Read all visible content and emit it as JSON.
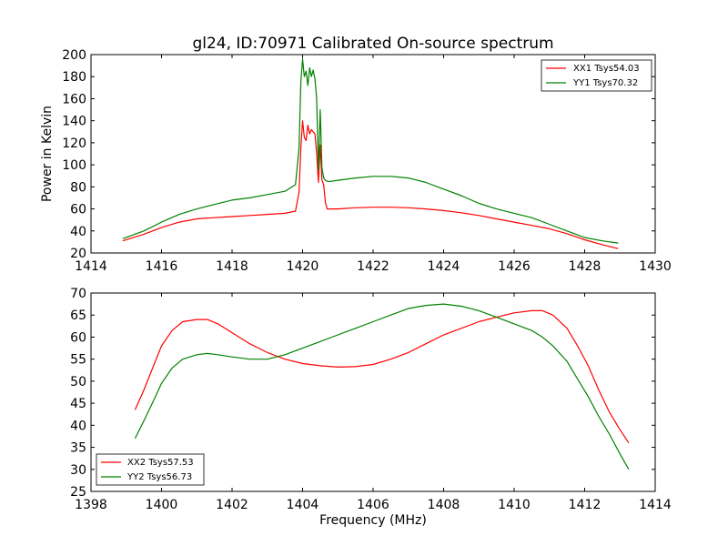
{
  "chart_data": [
    {
      "type": "line",
      "title": "gl24, ID:70971 Calibrated On-source spectrum",
      "xlabel": "",
      "ylabel": "Power in Kelvin",
      "xlim": [
        1414,
        1430
      ],
      "ylim": [
        20,
        200
      ],
      "xticks": [
        1414,
        1416,
        1418,
        1420,
        1422,
        1424,
        1426,
        1428,
        1430
      ],
      "yticks": [
        20,
        40,
        60,
        80,
        100,
        120,
        140,
        160,
        180,
        200
      ],
      "legend_position": "top-right",
      "grid": false,
      "series": [
        {
          "name": "XX1 Tsys54.03",
          "color": "#ff0000",
          "x": [
            1414.9,
            1415.5,
            1416.0,
            1416.5,
            1417.0,
            1417.5,
            1418.0,
            1418.5,
            1419.0,
            1419.5,
            1419.8,
            1419.9,
            1419.95,
            1420.0,
            1420.05,
            1420.1,
            1420.15,
            1420.2,
            1420.25,
            1420.3,
            1420.35,
            1420.4,
            1420.45,
            1420.5,
            1420.55,
            1420.6,
            1420.65,
            1420.7,
            1420.8,
            1421.0,
            1421.5,
            1422.0,
            1422.5,
            1423.0,
            1423.5,
            1424.0,
            1424.5,
            1425.0,
            1425.5,
            1426.0,
            1426.5,
            1427.0,
            1427.5,
            1428.0,
            1428.5,
            1428.95
          ],
          "y": [
            31,
            37,
            43,
            48,
            51,
            52,
            53,
            54,
            55,
            56,
            58,
            75,
            115,
            140,
            125,
            122,
            136,
            128,
            132,
            130,
            128,
            110,
            84,
            118,
            86,
            82,
            65,
            60,
            60,
            60,
            61,
            61.5,
            61.5,
            61,
            60,
            58.5,
            56.5,
            54,
            51,
            48,
            45,
            42,
            37.5,
            32,
            27.5,
            24
          ]
        },
        {
          "name": "YY1 Tsys70.32",
          "color": "#008000",
          "x": [
            1414.9,
            1415.5,
            1416.0,
            1416.5,
            1417.0,
            1417.5,
            1418.0,
            1418.5,
            1419.0,
            1419.5,
            1419.8,
            1419.9,
            1419.95,
            1420.0,
            1420.05,
            1420.1,
            1420.15,
            1420.2,
            1420.25,
            1420.3,
            1420.35,
            1420.4,
            1420.45,
            1420.5,
            1420.55,
            1420.6,
            1420.65,
            1420.7,
            1420.8,
            1421.0,
            1421.5,
            1422.0,
            1422.5,
            1423.0,
            1423.5,
            1424.0,
            1424.5,
            1425.0,
            1425.5,
            1426.0,
            1426.5,
            1427.0,
            1427.5,
            1428.0,
            1428.5,
            1428.95
          ],
          "y": [
            33,
            40,
            48,
            55,
            60,
            64,
            68,
            70,
            73,
            76,
            82,
            115,
            175,
            196,
            180,
            185,
            172,
            188,
            180,
            186,
            178,
            160,
            95,
            150,
            97,
            88,
            86,
            85,
            85,
            86,
            88,
            89.5,
            89.5,
            88,
            84,
            78,
            72,
            65,
            60,
            56,
            52,
            46,
            40,
            34,
            31,
            29
          ]
        }
      ]
    },
    {
      "type": "line",
      "title": "",
      "xlabel": "Frequency (MHz)",
      "ylabel": "",
      "xlim": [
        1398,
        1414
      ],
      "ylim": [
        25,
        70
      ],
      "xticks": [
        1398,
        1400,
        1402,
        1404,
        1406,
        1408,
        1410,
        1412,
        1414
      ],
      "yticks": [
        25,
        30,
        35,
        40,
        45,
        50,
        55,
        60,
        65,
        70
      ],
      "legend_position": "bottom-left",
      "grid": false,
      "series": [
        {
          "name": "XX2 Tsys57.53",
          "color": "#ff0000",
          "x": [
            1399.25,
            1399.5,
            1399.8,
            1400.0,
            1400.3,
            1400.6,
            1401.0,
            1401.3,
            1401.6,
            1402.0,
            1402.5,
            1403.0,
            1403.5,
            1404.0,
            1404.5,
            1405.0,
            1405.5,
            1406.0,
            1406.5,
            1407.0,
            1407.5,
            1408.0,
            1408.5,
            1409.0,
            1409.5,
            1410.0,
            1410.5,
            1410.8,
            1411.1,
            1411.5,
            1411.8,
            1412.1,
            1412.4,
            1412.7,
            1413.0,
            1413.25
          ],
          "y": [
            43.5,
            48,
            54,
            58,
            61.5,
            63.5,
            64,
            64,
            63,
            61,
            58.5,
            56.5,
            55,
            54,
            53.5,
            53.2,
            53.3,
            53.8,
            55,
            56.5,
            58.5,
            60.5,
            62,
            63.5,
            64.5,
            65.5,
            66,
            66,
            65,
            62,
            58,
            53.5,
            48,
            43,
            39,
            36
          ]
        },
        {
          "name": "YY2 Tsys56.73",
          "color": "#008000",
          "x": [
            1399.25,
            1399.5,
            1399.8,
            1400.0,
            1400.3,
            1400.6,
            1401.0,
            1401.3,
            1401.6,
            1402.0,
            1402.5,
            1403.0,
            1403.5,
            1404.0,
            1404.5,
            1405.0,
            1405.5,
            1406.0,
            1406.5,
            1407.0,
            1407.5,
            1408.0,
            1408.5,
            1409.0,
            1409.5,
            1410.0,
            1410.5,
            1410.8,
            1411.1,
            1411.5,
            1411.8,
            1412.1,
            1412.4,
            1412.7,
            1413.0,
            1413.25
          ],
          "y": [
            37,
            41,
            46,
            49.5,
            53,
            55,
            56,
            56.3,
            56,
            55.5,
            55,
            55,
            56,
            57.5,
            59,
            60.5,
            62,
            63.5,
            65,
            66.5,
            67.2,
            67.5,
            67,
            66,
            64.5,
            63,
            61.5,
            60,
            58,
            54.5,
            50.5,
            46.5,
            42,
            38,
            33.5,
            30
          ]
        }
      ]
    }
  ]
}
